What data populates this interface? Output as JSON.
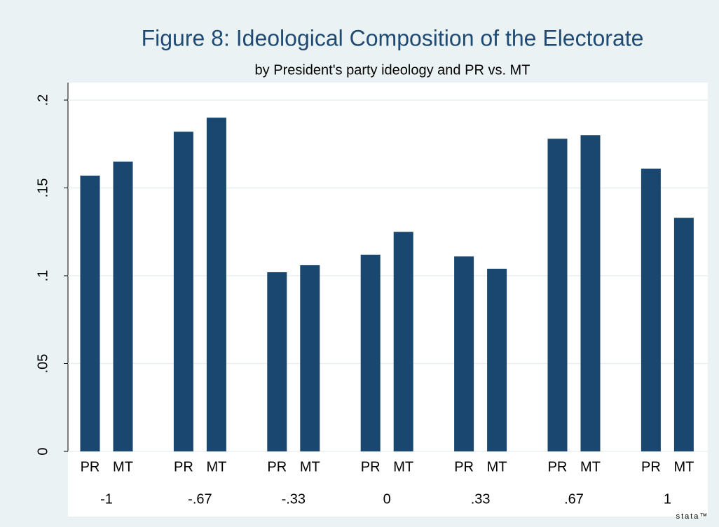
{
  "chart_data": {
    "type": "bar",
    "title": "Figure 8: Ideological Composition of the Electorate",
    "subtitle": "by President's party ideology and PR vs. MT",
    "categories": [
      "-1",
      "-.67",
      "-.33",
      "0",
      ".33",
      ".67",
      "1"
    ],
    "series": [
      {
        "name": "PR",
        "color": "#1a476f",
        "values": [
          0.157,
          0.182,
          0.102,
          0.112,
          0.111,
          0.178,
          0.161
        ]
      },
      {
        "name": "MT",
        "color": "#1a476f",
        "values": [
          0.165,
          0.19,
          0.106,
          0.125,
          0.104,
          0.18,
          0.133
        ]
      }
    ],
    "ylim": [
      0,
      0.2
    ],
    "yticks": [
      0,
      {
        "value": 0.05,
        "label": ".05"
      },
      {
        "value": 0.1,
        "label": ".1"
      },
      {
        "value": 0.15,
        "label": ".15"
      },
      {
        "value": 0.2,
        "label": ".2"
      }
    ],
    "grid": true,
    "watermark": "stata™"
  }
}
